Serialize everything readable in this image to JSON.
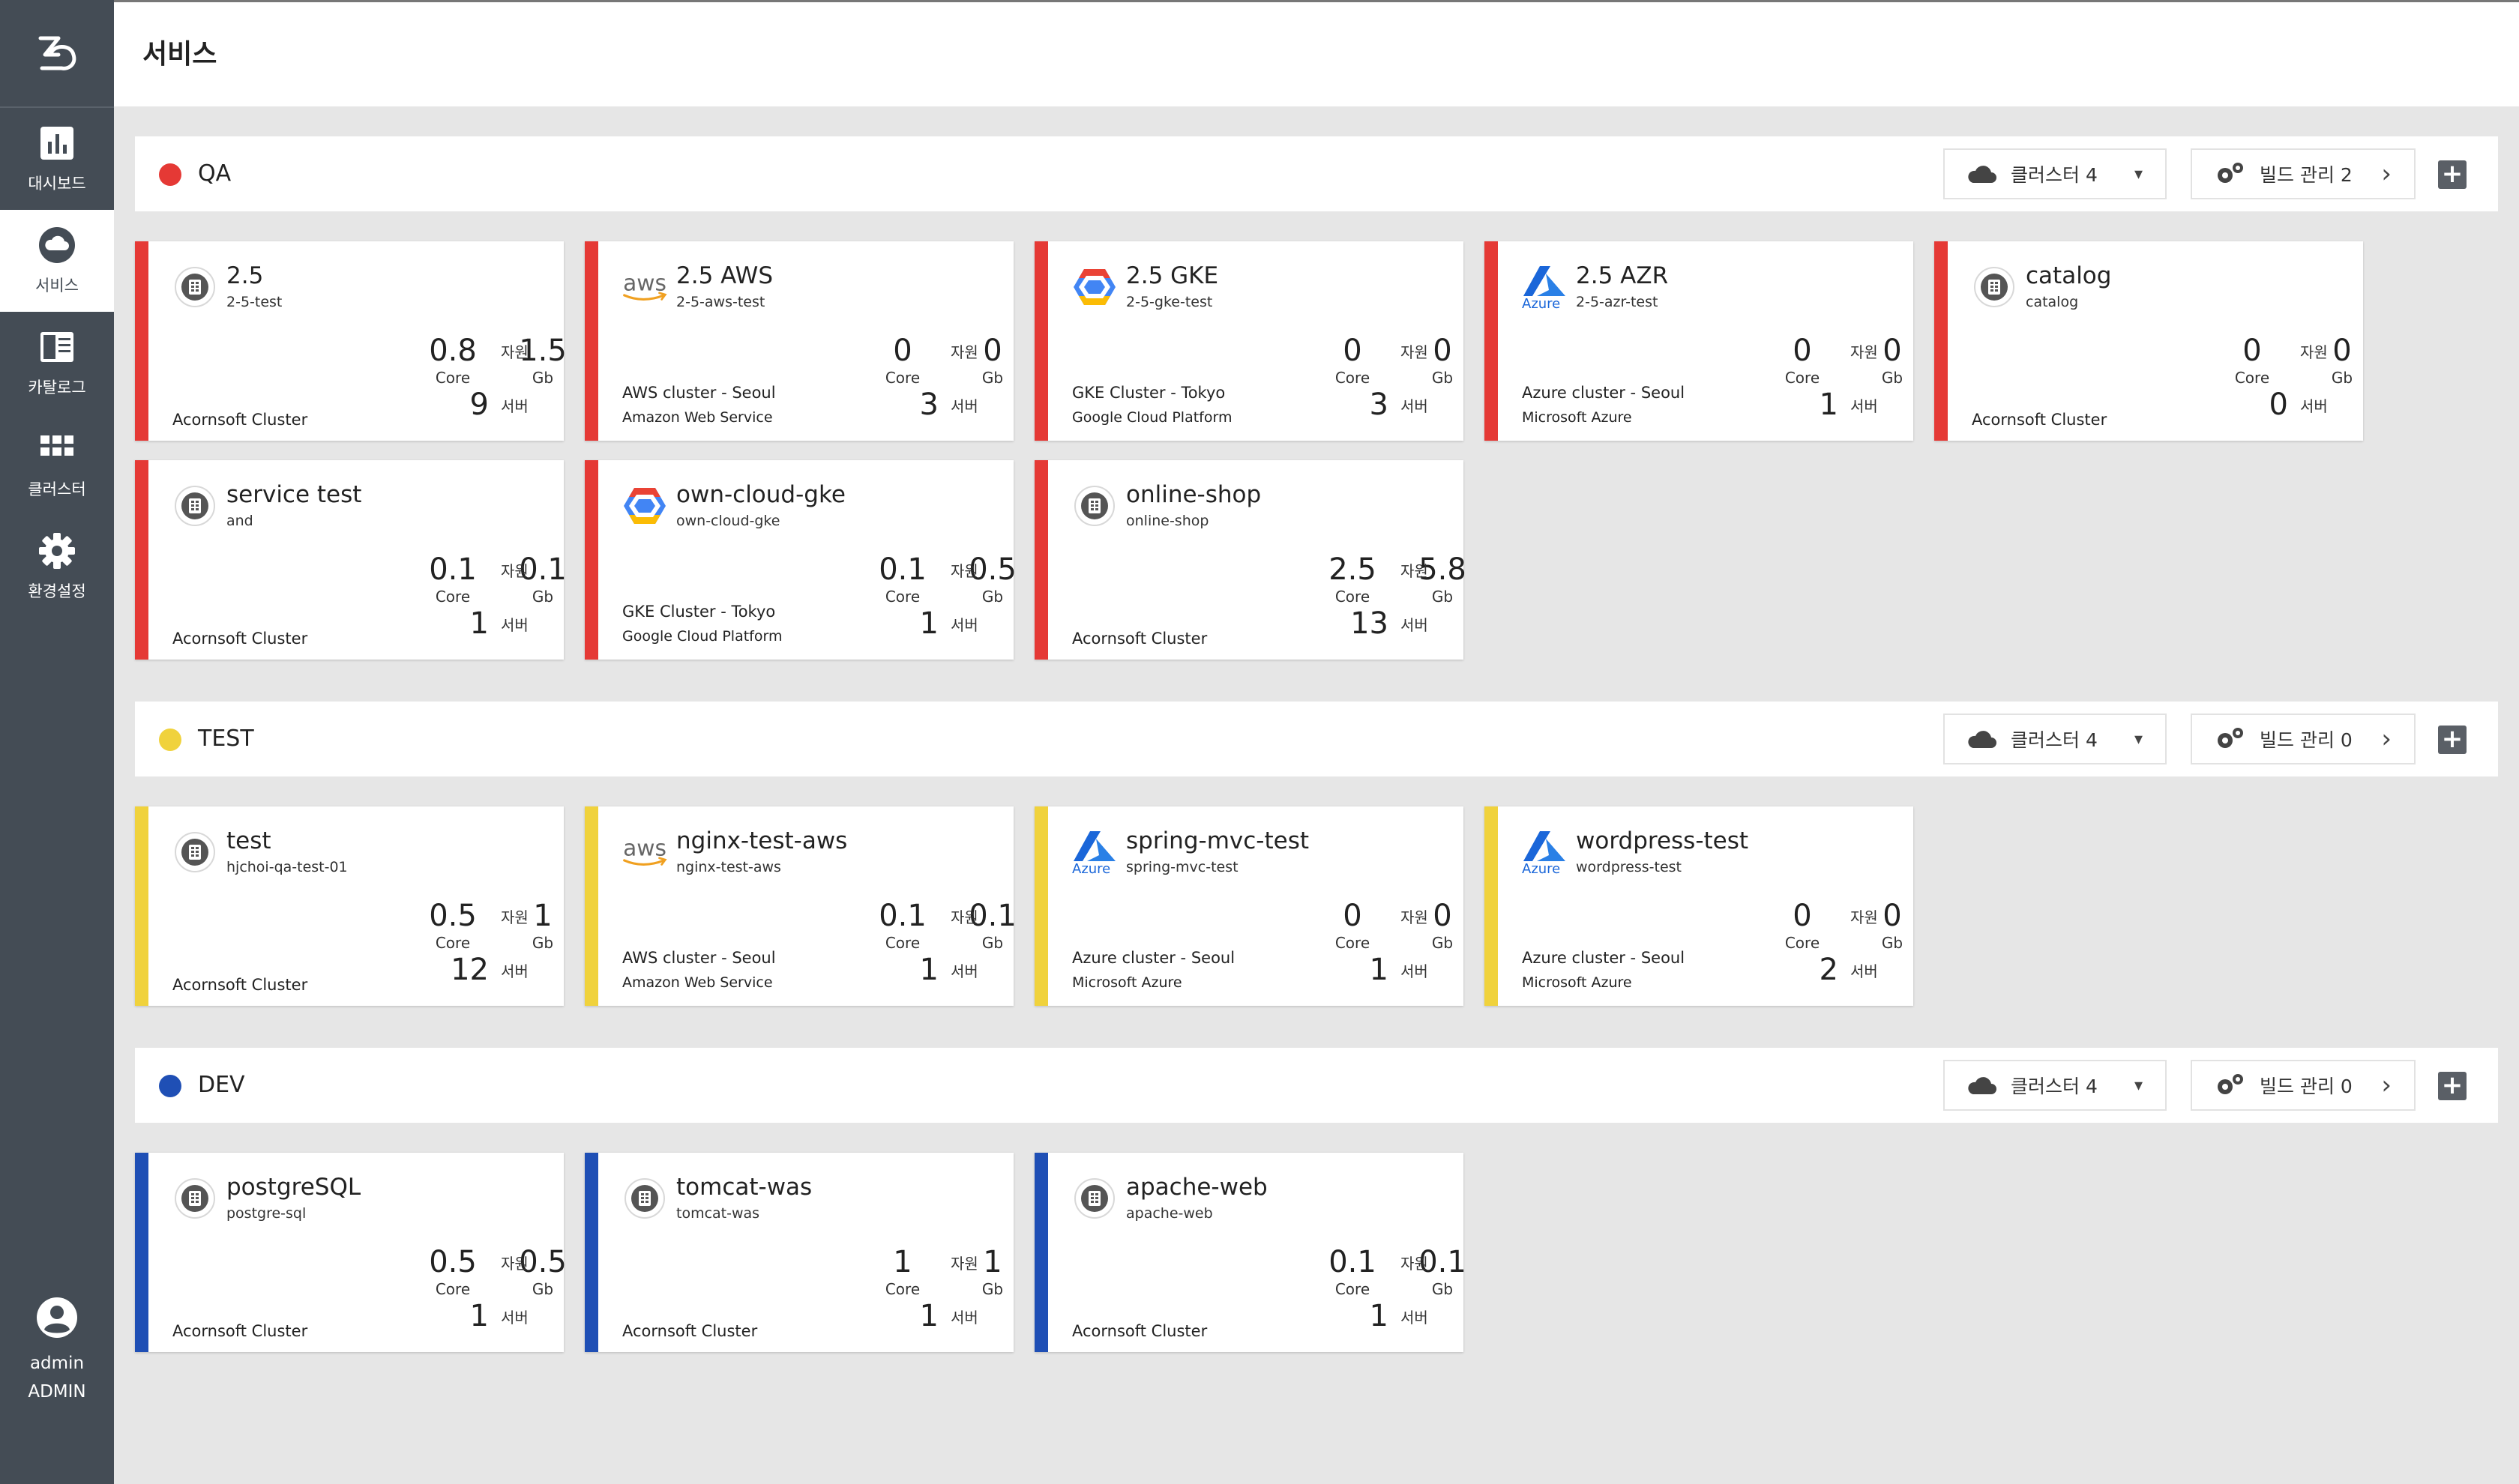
{
  "sidebar": {
    "items": [
      {
        "label": "대시보드",
        "icon": "bar-chart-icon"
      },
      {
        "label": "서비스",
        "icon": "cloud-icon"
      },
      {
        "label": "카탈로그",
        "icon": "catalog-icon"
      },
      {
        "label": "클러스터",
        "icon": "grid-icon"
      },
      {
        "label": "환경설정",
        "icon": "gear-icon"
      }
    ],
    "user": {
      "name": "admin",
      "role": "ADMIN"
    }
  },
  "header": {
    "title": "서비스"
  },
  "colors": {
    "qa": "#e53935",
    "test": "#f0d23c",
    "dev": "#1f4fb5"
  },
  "groups": [
    {
      "name": "QA",
      "cluster_btn": "클러스터 4",
      "build_btn": "빌드 관리 2",
      "cards": [
        {
          "name": "2.5",
          "sub": "2-5-test",
          "core": "0.8",
          "mem": "1.5",
          "servers": "9",
          "cl1": "",
          "cl2": "Acornsoft Cluster",
          "icon": "acorn"
        },
        {
          "name": "2.5 AWS",
          "sub": "2-5-aws-test",
          "core": "0",
          "mem": "0",
          "servers": "3",
          "cl1": "AWS cluster - Seoul",
          "cl2": "Amazon Web Service",
          "icon": "aws"
        },
        {
          "name": "2.5 GKE",
          "sub": "2-5-gke-test",
          "core": "0",
          "mem": "0",
          "servers": "3",
          "cl1": "GKE Cluster - Tokyo",
          "cl2": "Google Cloud Platform",
          "icon": "gke"
        },
        {
          "name": "2.5 AZR",
          "sub": "2-5-azr-test",
          "core": "0",
          "mem": "0",
          "servers": "1",
          "cl1": "Azure cluster - Seoul",
          "cl2": "Microsoft Azure",
          "icon": "azure"
        },
        {
          "name": "catalog",
          "sub": "catalog",
          "core": "0",
          "mem": "0",
          "servers": "0",
          "cl1": "",
          "cl2": "Acornsoft Cluster",
          "icon": "acorn"
        },
        {
          "name": "service test",
          "sub": "and",
          "core": "0.1",
          "mem": "0.1",
          "servers": "1",
          "cl1": "",
          "cl2": "Acornsoft Cluster",
          "icon": "acorn"
        },
        {
          "name": "own-cloud-gke",
          "sub": "own-cloud-gke",
          "core": "0.1",
          "mem": "0.5",
          "servers": "1",
          "cl1": "GKE Cluster - Tokyo",
          "cl2": "Google Cloud Platform",
          "icon": "gke"
        },
        {
          "name": "online-shop",
          "sub": "online-shop",
          "core": "2.5",
          "mem": "5.8",
          "servers": "13",
          "cl1": "",
          "cl2": "Acornsoft Cluster",
          "icon": "acorn"
        }
      ]
    },
    {
      "name": "TEST",
      "cluster_btn": "클러스터 4",
      "build_btn": "빌드 관리 0",
      "cards": [
        {
          "name": "test",
          "sub": "hjchoi-qa-test-01",
          "core": "0.5",
          "mem": "1",
          "servers": "12",
          "cl1": "",
          "cl2": "Acornsoft Cluster",
          "icon": "acorn"
        },
        {
          "name": "nginx-test-aws",
          "sub": "nginx-test-aws",
          "core": "0.1",
          "mem": "0.1",
          "servers": "1",
          "cl1": "AWS cluster - Seoul",
          "cl2": "Amazon Web Service",
          "icon": "aws"
        },
        {
          "name": "spring-mvc-test",
          "sub": "spring-mvc-test",
          "core": "0",
          "mem": "0",
          "servers": "1",
          "cl1": "Azure cluster - Seoul",
          "cl2": "Microsoft Azure",
          "icon": "azure"
        },
        {
          "name": "wordpress-test",
          "sub": "wordpress-test",
          "core": "0",
          "mem": "0",
          "servers": "2",
          "cl1": "Azure cluster - Seoul",
          "cl2": "Microsoft Azure",
          "icon": "azure"
        }
      ]
    },
    {
      "name": "DEV",
      "cluster_btn": "클러스터 4",
      "build_btn": "빌드 관리 0",
      "cards": [
        {
          "name": "postgreSQL",
          "sub": "postgre-sql",
          "core": "0.5",
          "mem": "0.5",
          "servers": "1",
          "cl1": "",
          "cl2": "Acornsoft Cluster",
          "icon": "acorn"
        },
        {
          "name": "tomcat-was",
          "sub": "tomcat-was",
          "core": "1",
          "mem": "1",
          "servers": "1",
          "cl1": "",
          "cl2": "Acornsoft Cluster",
          "icon": "acorn"
        },
        {
          "name": "apache-web",
          "sub": "apache-web",
          "core": "0.1",
          "mem": "0.1",
          "servers": "1",
          "cl1": "",
          "cl2": "Acornsoft Cluster",
          "icon": "acorn"
        }
      ]
    }
  ],
  "labels": {
    "core": "Core",
    "mem": "Gb",
    "resource": "자원",
    "server": "서버",
    "azure_text": "Azure",
    "aws_text": "aws"
  }
}
